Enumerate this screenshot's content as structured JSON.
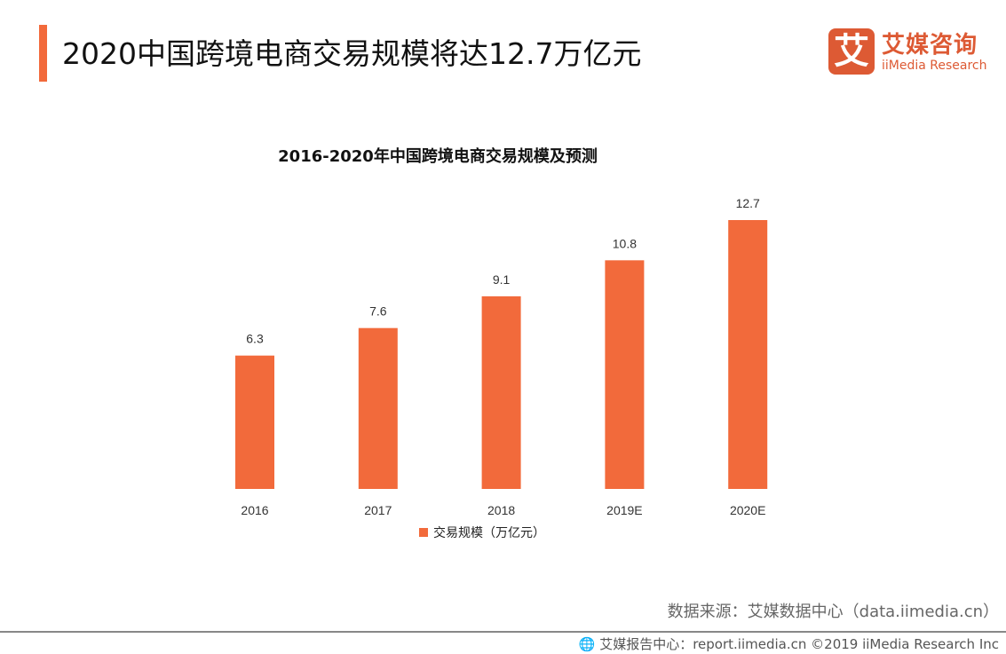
{
  "header": {
    "title": "2020中国跨境电商交易规模将达12.7万亿元"
  },
  "logo": {
    "mark": "艾",
    "name_cn": "艾媒咨询",
    "name_en": "iiMedia Research"
  },
  "colors": {
    "accent": "#f26a3b",
    "brand": "#dd5a34"
  },
  "chart_data": {
    "type": "bar",
    "title": "2016-2020年中国跨境电商交易规模及预测",
    "categories": [
      "2016",
      "2017",
      "2018",
      "2019E",
      "2020E"
    ],
    "series": [
      {
        "name": "交易规模（万亿元）",
        "values": [
          6.3,
          7.6,
          9.1,
          10.8,
          12.7
        ]
      }
    ],
    "data_labels": [
      "6.3",
      "7.6",
      "9.1",
      "10.8",
      "12.7"
    ],
    "ylim": [
      0,
      12.7
    ],
    "grid": false,
    "legend": "bottom"
  },
  "footer": {
    "source": "数据来源：艾媒数据中心（data.iimedia.cn）",
    "copyright": "艾媒报告中心：report.iimedia.cn  ©2019  iiMedia Research  Inc",
    "icon": "globe-icon"
  }
}
